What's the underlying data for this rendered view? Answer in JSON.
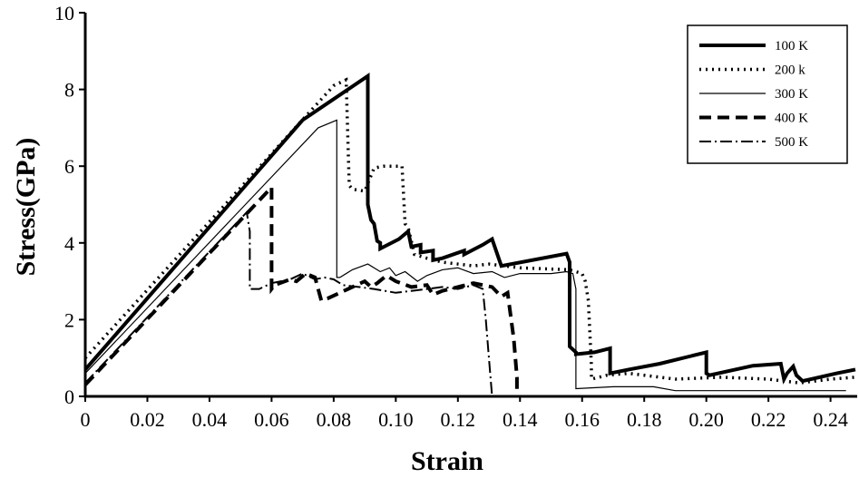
{
  "chart_data": {
    "type": "line",
    "title": "",
    "xlabel": "Strain",
    "ylabel": "Stress(GPa)",
    "xlim": [
      0,
      0.248
    ],
    "ylim": [
      0,
      10
    ],
    "xticks": [
      "0",
      "0.02",
      "0.04",
      "0.06",
      "0.08",
      "0.10",
      "0.12",
      "0.14",
      "0.16",
      "0.18",
      "0.20",
      "0.22",
      "0.24"
    ],
    "yticks": [
      "0",
      "2",
      "4",
      "6",
      "8",
      "10"
    ],
    "grid": false,
    "legend_position": "top-right",
    "series": [
      {
        "name": "100 K",
        "x": [
          0,
          0.07,
          0.091,
          0.091,
          0.092,
          0.093,
          0.094,
          0.095,
          0.095,
          0.101,
          0.104,
          0.105,
          0.108,
          0.108,
          0.112,
          0.112,
          0.115,
          0.122,
          0.122,
          0.128,
          0.131,
          0.134,
          0.155,
          0.156,
          0.156,
          0.158,
          0.158,
          0.164,
          0.169,
          0.169,
          0.175,
          0.185,
          0.2,
          0.2,
          0.201,
          0.215,
          0.224,
          0.225,
          0.226,
          0.228,
          0.229,
          0.231,
          0.242,
          0.248
        ],
        "y": [
          0.7,
          7.2,
          8.35,
          5.0,
          4.6,
          4.5,
          4.05,
          4.0,
          3.85,
          4.1,
          4.3,
          3.9,
          3.95,
          3.75,
          3.8,
          3.55,
          3.6,
          3.8,
          3.7,
          3.95,
          4.1,
          3.4,
          3.72,
          3.5,
          1.3,
          1.15,
          1.1,
          1.15,
          1.25,
          0.6,
          0.7,
          0.85,
          1.15,
          0.6,
          0.55,
          0.8,
          0.85,
          0.45,
          0.6,
          0.78,
          0.55,
          0.4,
          0.6,
          0.7
        ]
      },
      {
        "name": "200 k",
        "x": [
          0,
          0.08,
          0.084,
          0.085,
          0.086,
          0.09,
          0.093,
          0.096,
          0.102,
          0.103,
          0.104,
          0.106,
          0.11,
          0.115,
          0.125,
          0.13,
          0.14,
          0.156,
          0.16,
          0.161,
          0.162,
          0.163,
          0.163,
          0.168,
          0.175,
          0.19,
          0.205,
          0.22,
          0.23,
          0.24,
          0.248
        ],
        "y": [
          1.0,
          8.1,
          8.25,
          5.5,
          5.4,
          5.35,
          5.95,
          6.0,
          6.0,
          4.5,
          4.4,
          3.7,
          3.6,
          3.5,
          3.4,
          3.45,
          3.35,
          3.3,
          3.2,
          3.0,
          2.5,
          0.8,
          0.45,
          0.55,
          0.6,
          0.45,
          0.5,
          0.45,
          0.35,
          0.45,
          0.5
        ]
      },
      {
        "name": "300 K",
        "x": [
          0,
          0.075,
          0.081,
          0.081,
          0.082,
          0.086,
          0.091,
          0.095,
          0.098,
          0.1,
          0.103,
          0.107,
          0.11,
          0.115,
          0.12,
          0.125,
          0.131,
          0.135,
          0.14,
          0.15,
          0.155,
          0.157,
          0.158,
          0.158,
          0.17,
          0.183,
          0.19,
          0.245
        ],
        "y": [
          0.6,
          7.0,
          7.2,
          3.1,
          3.1,
          3.3,
          3.45,
          3.25,
          3.35,
          3.15,
          3.25,
          3.0,
          3.15,
          3.3,
          3.35,
          3.2,
          3.25,
          3.1,
          3.2,
          3.2,
          3.25,
          3.2,
          2.8,
          0.2,
          0.25,
          0.25,
          0.15,
          0.15
        ]
      },
      {
        "name": "400 K",
        "x": [
          0,
          0.06,
          0.06,
          0.06,
          0.061,
          0.066,
          0.068,
          0.071,
          0.074,
          0.076,
          0.078,
          0.082,
          0.09,
          0.092,
          0.094,
          0.097,
          0.1,
          0.105,
          0.11,
          0.112,
          0.115,
          0.12,
          0.125,
          0.128,
          0.131,
          0.134,
          0.136,
          0.138,
          0.139,
          0.139
        ],
        "y": [
          0.3,
          5.45,
          4.2,
          2.8,
          2.9,
          3.05,
          3.0,
          3.2,
          3.1,
          2.5,
          2.55,
          2.7,
          3.0,
          2.85,
          2.95,
          3.15,
          3.0,
          2.85,
          2.9,
          2.65,
          2.75,
          2.85,
          2.95,
          2.9,
          2.85,
          2.6,
          2.7,
          1.5,
          0.5,
          0
        ]
      },
      {
        "name": "500 K",
        "x": [
          0,
          0.052,
          0.053,
          0.053,
          0.056,
          0.06,
          0.066,
          0.07,
          0.074,
          0.077,
          0.08,
          0.083,
          0.088,
          0.093,
          0.1,
          0.105,
          0.11,
          0.115,
          0.12,
          0.125,
          0.128,
          0.129,
          0.13,
          0.131
        ],
        "y": [
          0.35,
          4.8,
          4.3,
          2.8,
          2.8,
          2.95,
          3.05,
          3.2,
          3.05,
          3.1,
          3.05,
          2.9,
          2.85,
          2.8,
          2.7,
          2.75,
          2.8,
          2.85,
          2.8,
          2.9,
          2.8,
          2.0,
          1.0,
          0
        ]
      }
    ]
  },
  "styles": [
    {
      "dash": "",
      "width": 4,
      "color": "#000000"
    },
    {
      "dash": "2 5",
      "width": 3.5,
      "color": "#000000"
    },
    {
      "dash": "",
      "width": 1.2,
      "color": "#000000"
    },
    {
      "dash": "13 7",
      "width": 4,
      "color": "#000000"
    },
    {
      "dash": "13 4 2 4",
      "width": 2,
      "color": "#000000"
    }
  ]
}
